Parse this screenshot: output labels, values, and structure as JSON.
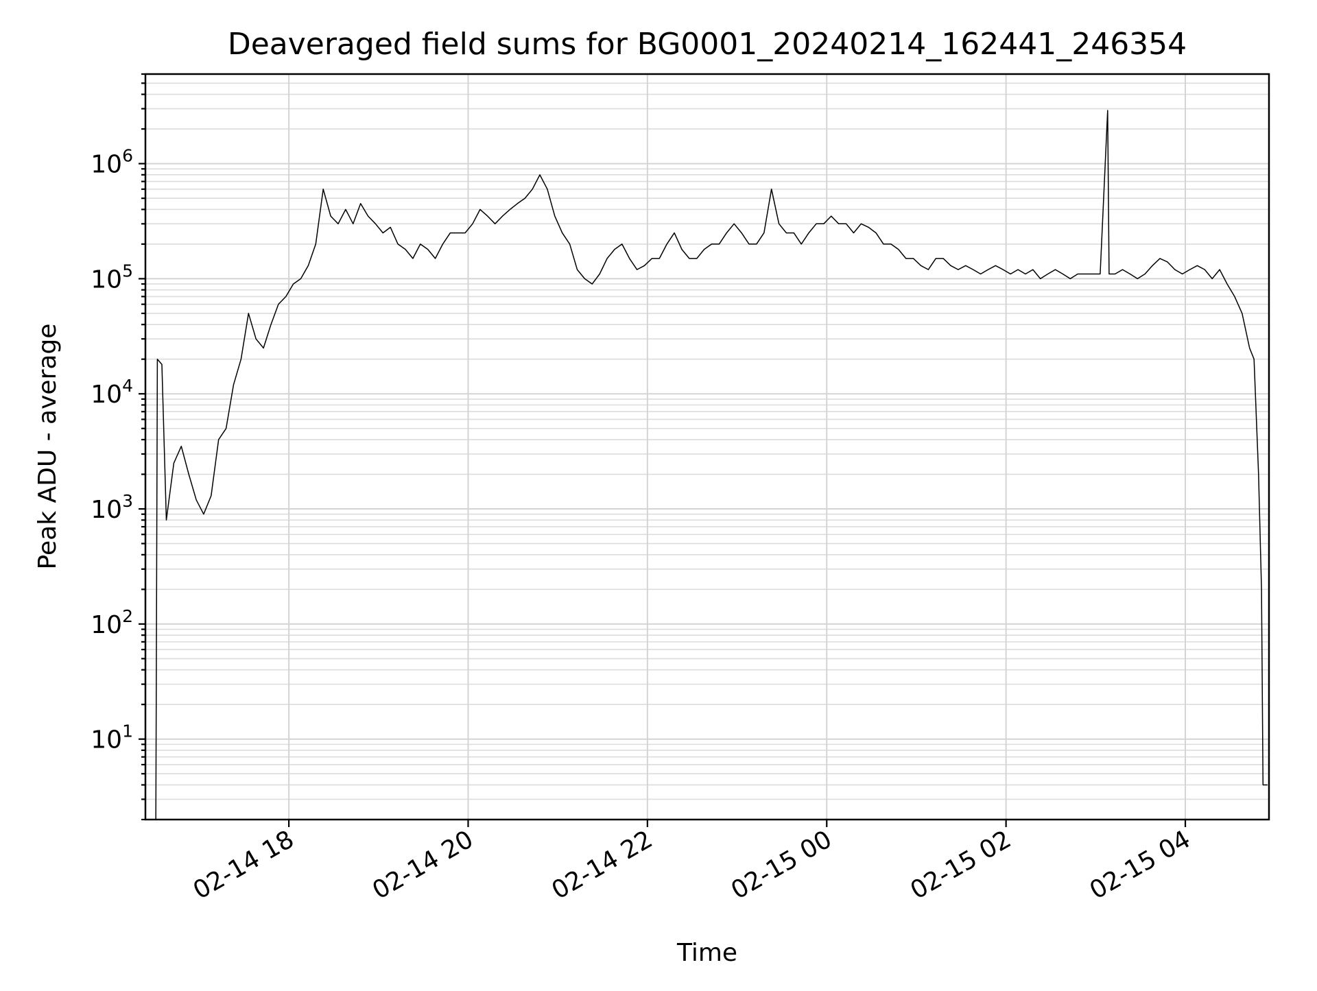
{
  "chart_data": {
    "type": "line",
    "title": "Deaveraged field sums for BG0001_20240214_162441_246354",
    "xlabel": "Time",
    "ylabel": "Peak ADU - average",
    "yscale": "log",
    "ylim": [
      2,
      6000000
    ],
    "xlim": [
      "2024-02-14 16:24",
      "2024-02-15 04:56"
    ],
    "x_ticks": [
      {
        "t": "2024-02-14 18:00",
        "label": "02-14 18"
      },
      {
        "t": "2024-02-14 20:00",
        "label": "02-14 20"
      },
      {
        "t": "2024-02-14 22:00",
        "label": "02-14 22"
      },
      {
        "t": "2024-02-15 00:00",
        "label": "02-15 00"
      },
      {
        "t": "2024-02-15 02:00",
        "label": "02-15 02"
      },
      {
        "t": "2024-02-15 04:00",
        "label": "02-15 04"
      }
    ],
    "y_ticks": [
      {
        "value": 10,
        "base": "10",
        "exp": "1"
      },
      {
        "value": 100,
        "base": "10",
        "exp": "2"
      },
      {
        "value": 1000,
        "base": "10",
        "exp": "3"
      },
      {
        "value": 10000,
        "base": "10",
        "exp": "4"
      },
      {
        "value": 100000,
        "base": "10",
        "exp": "5"
      },
      {
        "value": 1000000,
        "base": "10",
        "exp": "6"
      }
    ],
    "grid": true,
    "series": [
      {
        "color": "#000000",
        "points": [
          [
            "2024-02-14 16:31",
            2
          ],
          [
            "2024-02-14 16:32",
            20000
          ],
          [
            "2024-02-14 16:35",
            18000
          ],
          [
            "2024-02-14 16:38",
            800
          ],
          [
            "2024-02-14 16:43",
            2500
          ],
          [
            "2024-02-14 16:48",
            3500
          ],
          [
            "2024-02-14 16:53",
            2000
          ],
          [
            "2024-02-14 16:58",
            1200
          ],
          [
            "2024-02-14 17:03",
            900
          ],
          [
            "2024-02-14 17:08",
            1300
          ],
          [
            "2024-02-14 17:13",
            4000
          ],
          [
            "2024-02-14 17:18",
            5000
          ],
          [
            "2024-02-14 17:23",
            12000
          ],
          [
            "2024-02-14 17:28",
            20000
          ],
          [
            "2024-02-14 17:33",
            50000
          ],
          [
            "2024-02-14 17:38",
            30000
          ],
          [
            "2024-02-14 17:43",
            25000
          ],
          [
            "2024-02-14 17:48",
            40000
          ],
          [
            "2024-02-14 17:53",
            60000
          ],
          [
            "2024-02-14 17:58",
            70000
          ],
          [
            "2024-02-14 18:03",
            90000
          ],
          [
            "2024-02-14 18:08",
            100000
          ],
          [
            "2024-02-14 18:13",
            130000
          ],
          [
            "2024-02-14 18:18",
            200000
          ],
          [
            "2024-02-14 18:23",
            600000
          ],
          [
            "2024-02-14 18:28",
            350000
          ],
          [
            "2024-02-14 18:33",
            300000
          ],
          [
            "2024-02-14 18:38",
            400000
          ],
          [
            "2024-02-14 18:43",
            300000
          ],
          [
            "2024-02-14 18:48",
            450000
          ],
          [
            "2024-02-14 18:53",
            350000
          ],
          [
            "2024-02-14 18:58",
            300000
          ],
          [
            "2024-02-14 19:03",
            250000
          ],
          [
            "2024-02-14 19:08",
            280000
          ],
          [
            "2024-02-14 19:13",
            200000
          ],
          [
            "2024-02-14 19:18",
            180000
          ],
          [
            "2024-02-14 19:23",
            150000
          ],
          [
            "2024-02-14 19:28",
            200000
          ],
          [
            "2024-02-14 19:33",
            180000
          ],
          [
            "2024-02-14 19:38",
            150000
          ],
          [
            "2024-02-14 19:43",
            200000
          ],
          [
            "2024-02-14 19:48",
            250000
          ],
          [
            "2024-02-14 19:53",
            250000
          ],
          [
            "2024-02-14 19:58",
            250000
          ],
          [
            "2024-02-14 20:03",
            300000
          ],
          [
            "2024-02-14 20:08",
            400000
          ],
          [
            "2024-02-14 20:13",
            350000
          ],
          [
            "2024-02-14 20:18",
            300000
          ],
          [
            "2024-02-14 20:23",
            350000
          ],
          [
            "2024-02-14 20:28",
            400000
          ],
          [
            "2024-02-14 20:33",
            450000
          ],
          [
            "2024-02-14 20:38",
            500000
          ],
          [
            "2024-02-14 20:43",
            600000
          ],
          [
            "2024-02-14 20:48",
            800000
          ],
          [
            "2024-02-14 20:53",
            600000
          ],
          [
            "2024-02-14 20:58",
            350000
          ],
          [
            "2024-02-14 21:03",
            250000
          ],
          [
            "2024-02-14 21:08",
            200000
          ],
          [
            "2024-02-14 21:13",
            120000
          ],
          [
            "2024-02-14 21:18",
            100000
          ],
          [
            "2024-02-14 21:23",
            90000
          ],
          [
            "2024-02-14 21:28",
            110000
          ],
          [
            "2024-02-14 21:33",
            150000
          ],
          [
            "2024-02-14 21:38",
            180000
          ],
          [
            "2024-02-14 21:43",
            200000
          ],
          [
            "2024-02-14 21:48",
            150000
          ],
          [
            "2024-02-14 21:53",
            120000
          ],
          [
            "2024-02-14 21:58",
            130000
          ],
          [
            "2024-02-14 22:03",
            150000
          ],
          [
            "2024-02-14 22:08",
            150000
          ],
          [
            "2024-02-14 22:13",
            200000
          ],
          [
            "2024-02-14 22:18",
            250000
          ],
          [
            "2024-02-14 22:23",
            180000
          ],
          [
            "2024-02-14 22:28",
            150000
          ],
          [
            "2024-02-14 22:33",
            150000
          ],
          [
            "2024-02-14 22:38",
            180000
          ],
          [
            "2024-02-14 22:43",
            200000
          ],
          [
            "2024-02-14 22:48",
            200000
          ],
          [
            "2024-02-14 22:53",
            250000
          ],
          [
            "2024-02-14 22:58",
            300000
          ],
          [
            "2024-02-14 23:03",
            250000
          ],
          [
            "2024-02-14 23:08",
            200000
          ],
          [
            "2024-02-14 23:13",
            200000
          ],
          [
            "2024-02-14 23:18",
            250000
          ],
          [
            "2024-02-14 23:23",
            600000
          ],
          [
            "2024-02-14 23:28",
            300000
          ],
          [
            "2024-02-14 23:33",
            250000
          ],
          [
            "2024-02-14 23:38",
            250000
          ],
          [
            "2024-02-14 23:43",
            200000
          ],
          [
            "2024-02-14 23:48",
            250000
          ],
          [
            "2024-02-14 23:53",
            300000
          ],
          [
            "2024-02-14 23:58",
            300000
          ],
          [
            "2024-02-15 00:03",
            350000
          ],
          [
            "2024-02-15 00:08",
            300000
          ],
          [
            "2024-02-15 00:13",
            300000
          ],
          [
            "2024-02-15 00:18",
            250000
          ],
          [
            "2024-02-15 00:23",
            300000
          ],
          [
            "2024-02-15 00:28",
            280000
          ],
          [
            "2024-02-15 00:33",
            250000
          ],
          [
            "2024-02-15 00:38",
            200000
          ],
          [
            "2024-02-15 00:43",
            200000
          ],
          [
            "2024-02-15 00:48",
            180000
          ],
          [
            "2024-02-15 00:53",
            150000
          ],
          [
            "2024-02-15 00:58",
            150000
          ],
          [
            "2024-02-15 01:03",
            130000
          ],
          [
            "2024-02-15 01:08",
            120000
          ],
          [
            "2024-02-15 01:13",
            150000
          ],
          [
            "2024-02-15 01:18",
            150000
          ],
          [
            "2024-02-15 01:23",
            130000
          ],
          [
            "2024-02-15 01:28",
            120000
          ],
          [
            "2024-02-15 01:33",
            130000
          ],
          [
            "2024-02-15 01:38",
            120000
          ],
          [
            "2024-02-15 01:43",
            110000
          ],
          [
            "2024-02-15 01:48",
            120000
          ],
          [
            "2024-02-15 01:53",
            130000
          ],
          [
            "2024-02-15 01:58",
            120000
          ],
          [
            "2024-02-15 02:03",
            110000
          ],
          [
            "2024-02-15 02:08",
            120000
          ],
          [
            "2024-02-15 02:13",
            110000
          ],
          [
            "2024-02-15 02:18",
            120000
          ],
          [
            "2024-02-15 02:23",
            100000
          ],
          [
            "2024-02-15 02:28",
            110000
          ],
          [
            "2024-02-15 02:33",
            120000
          ],
          [
            "2024-02-15 02:38",
            110000
          ],
          [
            "2024-02-15 02:43",
            100000
          ],
          [
            "2024-02-15 02:48",
            110000
          ],
          [
            "2024-02-15 02:53",
            110000
          ],
          [
            "2024-02-15 02:58",
            110000
          ],
          [
            "2024-02-15 03:03",
            110000
          ],
          [
            "2024-02-15 03:08",
            2900000
          ],
          [
            "2024-02-15 03:09",
            110000
          ],
          [
            "2024-02-15 03:13",
            110000
          ],
          [
            "2024-02-15 03:18",
            120000
          ],
          [
            "2024-02-15 03:23",
            110000
          ],
          [
            "2024-02-15 03:28",
            100000
          ],
          [
            "2024-02-15 03:33",
            110000
          ],
          [
            "2024-02-15 03:38",
            130000
          ],
          [
            "2024-02-15 03:43",
            150000
          ],
          [
            "2024-02-15 03:48",
            140000
          ],
          [
            "2024-02-15 03:53",
            120000
          ],
          [
            "2024-02-15 03:58",
            110000
          ],
          [
            "2024-02-15 04:03",
            120000
          ],
          [
            "2024-02-15 04:08",
            130000
          ],
          [
            "2024-02-15 04:13",
            120000
          ],
          [
            "2024-02-15 04:18",
            100000
          ],
          [
            "2024-02-15 04:23",
            120000
          ],
          [
            "2024-02-15 04:28",
            90000
          ],
          [
            "2024-02-15 04:33",
            70000
          ],
          [
            "2024-02-15 04:38",
            50000
          ],
          [
            "2024-02-15 04:43",
            25000
          ],
          [
            "2024-02-15 04:46",
            20000
          ],
          [
            "2024-02-15 04:49",
            2000
          ],
          [
            "2024-02-15 04:51",
            200
          ],
          [
            "2024-02-15 04:52",
            4
          ],
          [
            "2024-02-15 04:55",
            4
          ]
        ]
      }
    ]
  }
}
